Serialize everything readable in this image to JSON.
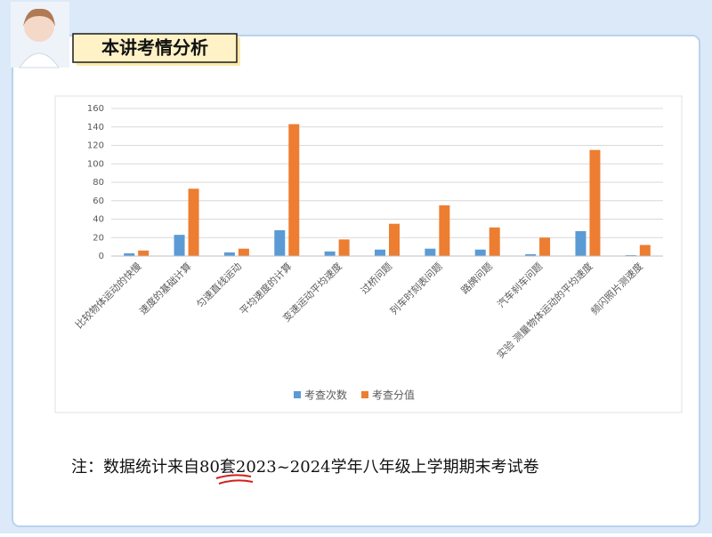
{
  "header": {
    "title": "本讲考情分析"
  },
  "note": "注：数据统计来自80套2023~2024学年八年级上学期期末考试卷",
  "chart_data": {
    "type": "bar",
    "categories": [
      "比较物体运动的快慢",
      "速度的基础计算",
      "匀速直线运动",
      "平均速度的计算",
      "变速运动平均速度",
      "过桥问题",
      "列车时刻表问题",
      "路牌问题",
      "汽车刹车问题",
      "实验 测量物体运动的平均速度",
      "频闪照片测速度"
    ],
    "series": [
      {
        "name": "考查次数",
        "color": "#5b9bd5",
        "values": [
          3,
          23,
          4,
          28,
          5,
          7,
          8,
          7,
          2,
          27,
          1
        ]
      },
      {
        "name": "考查分值",
        "color": "#ed7d31",
        "values": [
          6,
          73,
          8,
          143,
          18,
          35,
          55,
          31,
          20,
          115,
          12
        ]
      }
    ],
    "ylim": [
      0,
      160
    ],
    "yticks": [
      0,
      20,
      40,
      60,
      80,
      100,
      120,
      140,
      160
    ],
    "grid": true,
    "legend": "bottom"
  }
}
